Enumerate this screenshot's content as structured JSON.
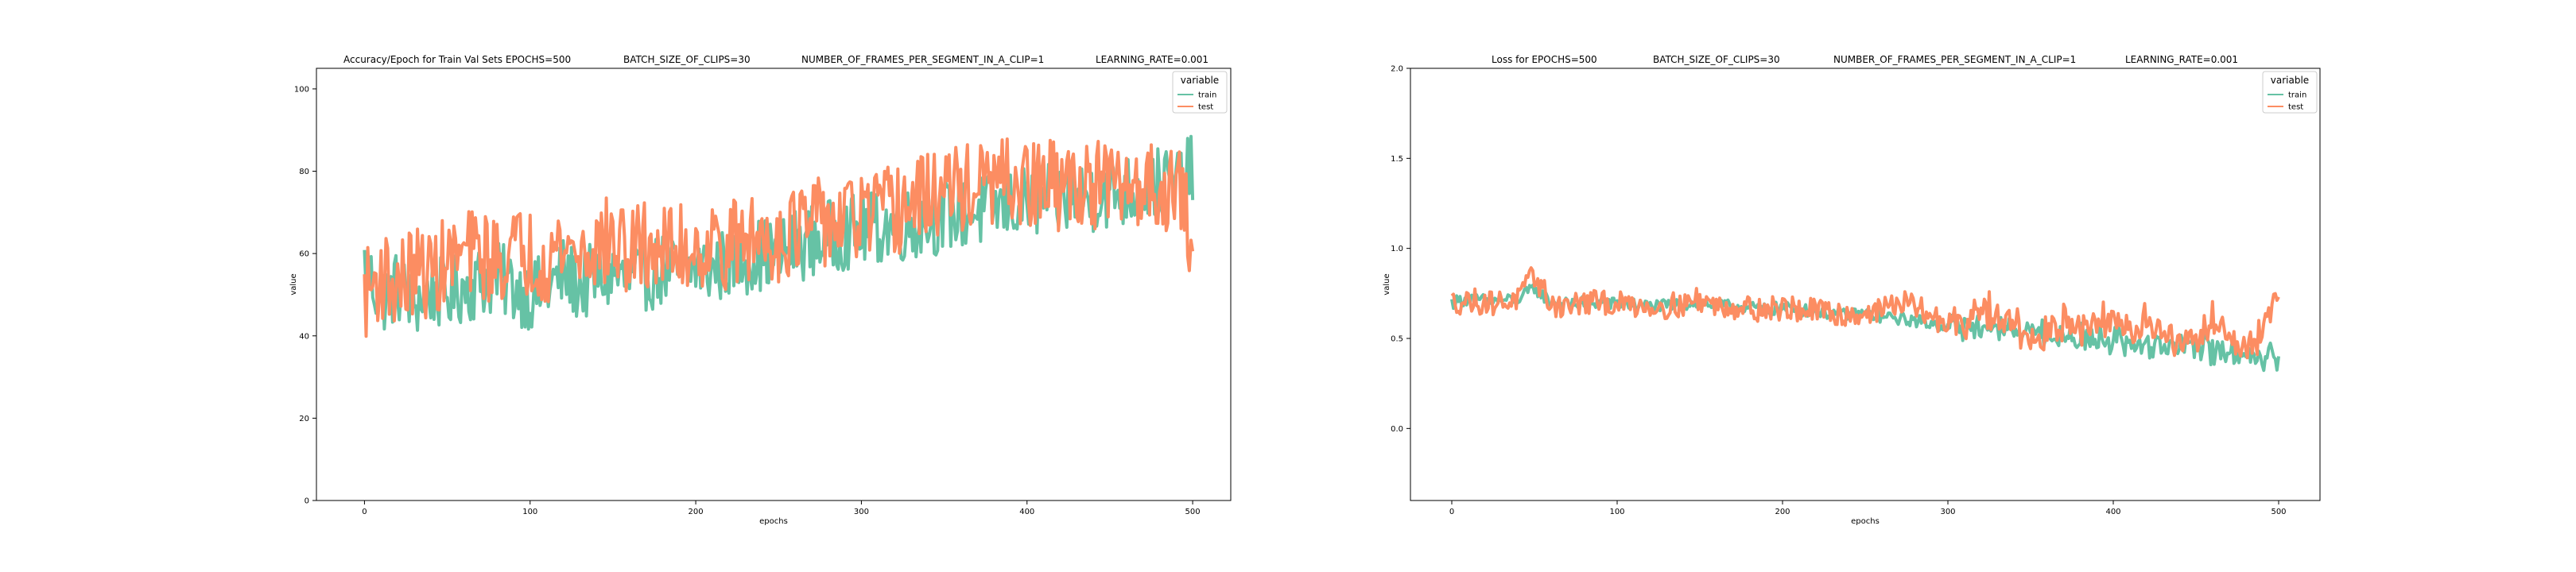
{
  "chart_data": [
    {
      "type": "line",
      "title_parts": [
        "Accuracy/Epoch for Train Val Sets EPOCHS=500",
        "BATCH_SIZE_OF_CLIPS=30",
        "NUMBER_OF_FRAMES_PER_SEGMENT_IN_A_CLIP=1",
        "LEARNING_RATE=0.001"
      ],
      "xlabel": "epochs",
      "ylabel": "value",
      "xlim": [
        -29,
        523
      ],
      "ylim": [
        0,
        105
      ],
      "xticks": [
        0,
        100,
        200,
        300,
        400,
        500
      ],
      "yticks": [
        0,
        20,
        40,
        60,
        80,
        100
      ],
      "legend": {
        "title": "variable",
        "position": "top-right",
        "entries": [
          "train",
          "test"
        ]
      },
      "series": [
        {
          "name": "train",
          "color": "#66c2a5",
          "x": [
            0,
            10,
            20,
            30,
            40,
            50,
            60,
            70,
            80,
            90,
            100,
            110,
            120,
            130,
            140,
            150,
            160,
            170,
            180,
            190,
            200,
            210,
            220,
            230,
            240,
            250,
            260,
            270,
            280,
            290,
            300,
            310,
            320,
            330,
            340,
            350,
            360,
            370,
            380,
            390,
            400,
            410,
            420,
            430,
            440,
            450,
            460,
            470,
            480,
            490,
            500
          ],
          "y": [
            57,
            49,
            52,
            48,
            51,
            50,
            52,
            53,
            54,
            52,
            50,
            51,
            55,
            52,
            54,
            55,
            53,
            55,
            56,
            55,
            57,
            56,
            58,
            59,
            60,
            60,
            62,
            63,
            64,
            65,
            66,
            66,
            67,
            67,
            68,
            69,
            70,
            70,
            71,
            72,
            72,
            73,
            73,
            74,
            74,
            75,
            75,
            76,
            77,
            77,
            80
          ]
        },
        {
          "name": "test",
          "color": "#fc8d62",
          "x": [
            0,
            10,
            20,
            30,
            40,
            50,
            60,
            70,
            80,
            90,
            100,
            110,
            120,
            130,
            140,
            150,
            160,
            170,
            180,
            190,
            200,
            210,
            220,
            230,
            240,
            250,
            260,
            270,
            280,
            290,
            300,
            310,
            320,
            330,
            340,
            350,
            360,
            370,
            380,
            390,
            400,
            410,
            420,
            430,
            440,
            450,
            460,
            470,
            480,
            490,
            500
          ],
          "y": [
            50,
            55,
            52,
            56,
            55,
            58,
            60,
            60,
            58,
            61,
            60,
            59,
            62,
            60,
            62,
            63,
            60,
            62,
            61,
            61,
            62,
            62,
            62,
            63,
            64,
            64,
            66,
            67,
            68,
            68,
            69,
            70,
            70,
            72,
            74,
            75,
            76,
            76,
            77,
            77,
            76,
            77,
            76,
            77,
            77,
            76,
            76,
            77,
            76,
            77,
            63
          ]
        }
      ]
    },
    {
      "type": "line",
      "title_parts": [
        "Loss for  EPOCHS=500",
        "BATCH_SIZE_OF_CLIPS=30",
        "NUMBER_OF_FRAMES_PER_SEGMENT_IN_A_CLIP=1",
        "LEARNING_RATE=0.001"
      ],
      "xlabel": "epochs",
      "ylabel": "value",
      "xlim": [
        -25,
        525
      ],
      "ylim": [
        -0.4,
        2.0
      ],
      "xticks": [
        0,
        100,
        200,
        300,
        400,
        500
      ],
      "yticks": [
        "0.0",
        "0.5",
        "1.0",
        "1.5",
        "2.0"
      ],
      "legend": {
        "title": "variable",
        "position": "top-right",
        "entries": [
          "train",
          "test"
        ]
      },
      "series": [
        {
          "name": "train",
          "color": "#66c2a5",
          "x": [
            0,
            10,
            20,
            30,
            40,
            50,
            60,
            70,
            80,
            90,
            100,
            110,
            120,
            130,
            140,
            150,
            160,
            170,
            180,
            190,
            200,
            210,
            220,
            230,
            240,
            250,
            260,
            270,
            280,
            290,
            300,
            310,
            320,
            330,
            340,
            350,
            360,
            370,
            380,
            390,
            400,
            410,
            420,
            430,
            440,
            450,
            460,
            470,
            480,
            490,
            500
          ],
          "y": [
            0.7,
            0.72,
            0.71,
            0.71,
            0.72,
            0.78,
            0.7,
            0.69,
            0.7,
            0.7,
            0.69,
            0.69,
            0.68,
            0.68,
            0.69,
            0.7,
            0.68,
            0.68,
            0.67,
            0.66,
            0.67,
            0.66,
            0.65,
            0.64,
            0.63,
            0.64,
            0.62,
            0.61,
            0.6,
            0.58,
            0.57,
            0.56,
            0.56,
            0.55,
            0.54,
            0.52,
            0.52,
            0.51,
            0.5,
            0.5,
            0.49,
            0.48,
            0.47,
            0.46,
            0.46,
            0.45,
            0.44,
            0.43,
            0.42,
            0.41,
            0.4
          ]
        },
        {
          "name": "test",
          "color": "#fc8d62",
          "x": [
            0,
            10,
            20,
            30,
            40,
            50,
            60,
            70,
            80,
            90,
            100,
            110,
            120,
            130,
            140,
            150,
            160,
            170,
            180,
            190,
            200,
            210,
            220,
            230,
            240,
            250,
            260,
            270,
            280,
            290,
            300,
            310,
            320,
            330,
            340,
            350,
            360,
            370,
            380,
            390,
            400,
            410,
            420,
            430,
            440,
            450,
            460,
            470,
            480,
            490,
            500
          ],
          "y": [
            0.7,
            0.71,
            0.7,
            0.7,
            0.72,
            0.85,
            0.69,
            0.68,
            0.7,
            0.7,
            0.69,
            0.69,
            0.68,
            0.68,
            0.69,
            0.72,
            0.68,
            0.68,
            0.67,
            0.66,
            0.67,
            0.66,
            0.65,
            0.64,
            0.63,
            0.64,
            0.66,
            0.7,
            0.68,
            0.62,
            0.58,
            0.6,
            0.66,
            0.6,
            0.55,
            0.5,
            0.55,
            0.6,
            0.52,
            0.6,
            0.58,
            0.55,
            0.62,
            0.52,
            0.5,
            0.52,
            0.6,
            0.5,
            0.45,
            0.5,
            0.75
          ]
        }
      ]
    }
  ]
}
